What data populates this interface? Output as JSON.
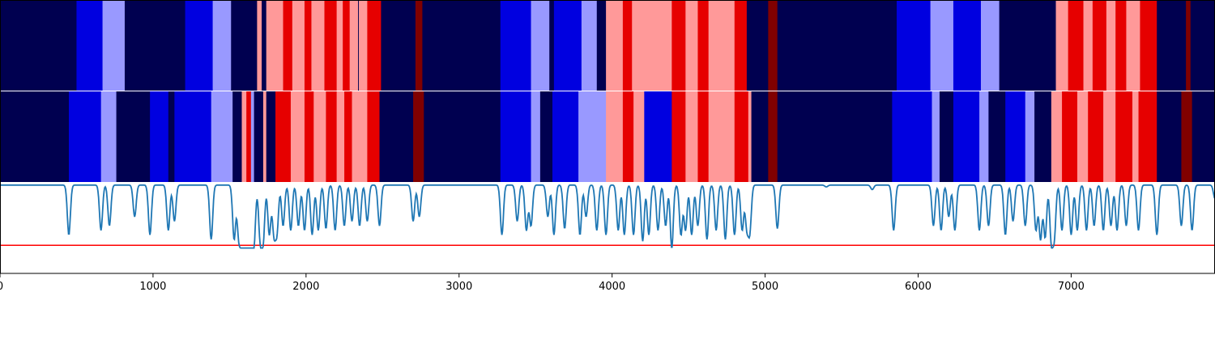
{
  "colors": {
    "navy": "#000050",
    "blue": "#0000e0",
    "light_blue": "#9999ff",
    "light_red": "#ff9999",
    "red": "#e60000",
    "dark_red": "#800000",
    "line": "#1f77b4",
    "threshold": "#ff0000"
  },
  "chart_data": {
    "type": "segmentation-strips-with-line",
    "x_range": [
      0,
      7940
    ],
    "x_ticks": [
      {
        "value": 0,
        "label": "0"
      },
      {
        "value": 1000,
        "label": "1000"
      },
      {
        "value": 2000,
        "label": "2000"
      },
      {
        "value": 3000,
        "label": "3000"
      },
      {
        "value": 4000,
        "label": "4000"
      },
      {
        "value": 5000,
        "label": "5000"
      },
      {
        "value": 6000,
        "label": "6000"
      },
      {
        "value": 7000,
        "label": "7000"
      }
    ],
    "strips": [
      {
        "segments": [
          {
            "start": 0,
            "end": 500,
            "cls": "navy"
          },
          {
            "start": 500,
            "end": 670,
            "cls": "blue"
          },
          {
            "start": 670,
            "end": 815,
            "cls": "light_blue"
          },
          {
            "start": 815,
            "end": 1210,
            "cls": "navy"
          },
          {
            "start": 1210,
            "end": 1390,
            "cls": "blue"
          },
          {
            "start": 1390,
            "end": 1510,
            "cls": "light_blue"
          },
          {
            "start": 1510,
            "end": 1680,
            "cls": "navy"
          },
          {
            "start": 1680,
            "end": 1710,
            "cls": "light_red"
          },
          {
            "start": 1710,
            "end": 1740,
            "cls": "navy"
          },
          {
            "start": 1740,
            "end": 1850,
            "cls": "light_red"
          },
          {
            "start": 1850,
            "end": 1910,
            "cls": "red"
          },
          {
            "start": 1910,
            "end": 1990,
            "cls": "light_red"
          },
          {
            "start": 1990,
            "end": 2035,
            "cls": "red"
          },
          {
            "start": 2035,
            "end": 2120,
            "cls": "light_red"
          },
          {
            "start": 2120,
            "end": 2200,
            "cls": "red"
          },
          {
            "start": 2200,
            "end": 2240,
            "cls": "light_red"
          },
          {
            "start": 2240,
            "end": 2285,
            "cls": "red"
          },
          {
            "start": 2285,
            "end": 2340,
            "cls": "light_red"
          },
          {
            "start": 2340,
            "end": 2345,
            "cls": "navy"
          },
          {
            "start": 2345,
            "end": 2400,
            "cls": "light_red"
          },
          {
            "start": 2400,
            "end": 2490,
            "cls": "red"
          },
          {
            "start": 2490,
            "end": 2715,
            "cls": "navy"
          },
          {
            "start": 2715,
            "end": 2760,
            "cls": "dark_red"
          },
          {
            "start": 2760,
            "end": 3270,
            "cls": "navy"
          },
          {
            "start": 3270,
            "end": 3470,
            "cls": "blue"
          },
          {
            "start": 3470,
            "end": 3590,
            "cls": "light_blue"
          },
          {
            "start": 3590,
            "end": 3620,
            "cls": "navy"
          },
          {
            "start": 3620,
            "end": 3800,
            "cls": "blue"
          },
          {
            "start": 3800,
            "end": 3900,
            "cls": "light_blue"
          },
          {
            "start": 3900,
            "end": 3960,
            "cls": "navy"
          },
          {
            "start": 3960,
            "end": 4070,
            "cls": "light_red"
          },
          {
            "start": 4070,
            "end": 4130,
            "cls": "red"
          },
          {
            "start": 4130,
            "end": 4390,
            "cls": "light_red"
          },
          {
            "start": 4390,
            "end": 4480,
            "cls": "red"
          },
          {
            "start": 4480,
            "end": 4560,
            "cls": "light_red"
          },
          {
            "start": 4560,
            "end": 4630,
            "cls": "red"
          },
          {
            "start": 4630,
            "end": 4800,
            "cls": "light_red"
          },
          {
            "start": 4800,
            "end": 4880,
            "cls": "red"
          },
          {
            "start": 4880,
            "end": 5020,
            "cls": "navy"
          },
          {
            "start": 5020,
            "end": 5080,
            "cls": "dark_red"
          },
          {
            "start": 5080,
            "end": 5860,
            "cls": "navy"
          },
          {
            "start": 5860,
            "end": 6080,
            "cls": "blue"
          },
          {
            "start": 6080,
            "end": 6230,
            "cls": "light_blue"
          },
          {
            "start": 6230,
            "end": 6410,
            "cls": "blue"
          },
          {
            "start": 6410,
            "end": 6530,
            "cls": "light_blue"
          },
          {
            "start": 6530,
            "end": 6900,
            "cls": "navy"
          },
          {
            "start": 6900,
            "end": 6980,
            "cls": "light_red"
          },
          {
            "start": 6980,
            "end": 7080,
            "cls": "red"
          },
          {
            "start": 7080,
            "end": 7140,
            "cls": "light_red"
          },
          {
            "start": 7140,
            "end": 7230,
            "cls": "red"
          },
          {
            "start": 7230,
            "end": 7290,
            "cls": "light_red"
          },
          {
            "start": 7290,
            "end": 7360,
            "cls": "red"
          },
          {
            "start": 7360,
            "end": 7450,
            "cls": "light_red"
          },
          {
            "start": 7450,
            "end": 7560,
            "cls": "red"
          },
          {
            "start": 7560,
            "end": 7750,
            "cls": "navy"
          },
          {
            "start": 7750,
            "end": 7780,
            "cls": "dark_red"
          },
          {
            "start": 7780,
            "end": 7940,
            "cls": "navy"
          }
        ]
      },
      {
        "segments": [
          {
            "start": 0,
            "end": 450,
            "cls": "navy"
          },
          {
            "start": 450,
            "end": 660,
            "cls": "blue"
          },
          {
            "start": 660,
            "end": 760,
            "cls": "light_blue"
          },
          {
            "start": 760,
            "end": 980,
            "cls": "navy"
          },
          {
            "start": 980,
            "end": 1100,
            "cls": "blue"
          },
          {
            "start": 1100,
            "end": 1140,
            "cls": "navy"
          },
          {
            "start": 1140,
            "end": 1380,
            "cls": "blue"
          },
          {
            "start": 1380,
            "end": 1520,
            "cls": "light_blue"
          },
          {
            "start": 1520,
            "end": 1580,
            "cls": "navy"
          },
          {
            "start": 1580,
            "end": 1610,
            "cls": "light_red"
          },
          {
            "start": 1610,
            "end": 1640,
            "cls": "red"
          },
          {
            "start": 1640,
            "end": 1660,
            "cls": "light_blue"
          },
          {
            "start": 1660,
            "end": 1720,
            "cls": "navy"
          },
          {
            "start": 1720,
            "end": 1740,
            "cls": "light_red"
          },
          {
            "start": 1740,
            "end": 1800,
            "cls": "navy"
          },
          {
            "start": 1800,
            "end": 1900,
            "cls": "red"
          },
          {
            "start": 1900,
            "end": 1990,
            "cls": "light_red"
          },
          {
            "start": 1990,
            "end": 2050,
            "cls": "red"
          },
          {
            "start": 2050,
            "end": 2130,
            "cls": "light_red"
          },
          {
            "start": 2130,
            "end": 2200,
            "cls": "red"
          },
          {
            "start": 2200,
            "end": 2250,
            "cls": "light_red"
          },
          {
            "start": 2250,
            "end": 2300,
            "cls": "red"
          },
          {
            "start": 2300,
            "end": 2400,
            "cls": "light_red"
          },
          {
            "start": 2400,
            "end": 2480,
            "cls": "red"
          },
          {
            "start": 2480,
            "end": 2700,
            "cls": "navy"
          },
          {
            "start": 2700,
            "end": 2770,
            "cls": "dark_red"
          },
          {
            "start": 2770,
            "end": 3270,
            "cls": "navy"
          },
          {
            "start": 3270,
            "end": 3470,
            "cls": "blue"
          },
          {
            "start": 3470,
            "end": 3530,
            "cls": "light_blue"
          },
          {
            "start": 3530,
            "end": 3610,
            "cls": "navy"
          },
          {
            "start": 3610,
            "end": 3780,
            "cls": "blue"
          },
          {
            "start": 3780,
            "end": 3960,
            "cls": "light_blue"
          },
          {
            "start": 3960,
            "end": 4070,
            "cls": "light_red"
          },
          {
            "start": 4070,
            "end": 4140,
            "cls": "red"
          },
          {
            "start": 4140,
            "end": 4210,
            "cls": "light_red"
          },
          {
            "start": 4210,
            "end": 4390,
            "cls": "blue"
          },
          {
            "start": 4390,
            "end": 4480,
            "cls": "red"
          },
          {
            "start": 4480,
            "end": 4560,
            "cls": "light_red"
          },
          {
            "start": 4560,
            "end": 4630,
            "cls": "red"
          },
          {
            "start": 4630,
            "end": 4800,
            "cls": "light_red"
          },
          {
            "start": 4800,
            "end": 4890,
            "cls": "red"
          },
          {
            "start": 4890,
            "end": 4910,
            "cls": "light_red"
          },
          {
            "start": 4910,
            "end": 5020,
            "cls": "navy"
          },
          {
            "start": 5020,
            "end": 5080,
            "cls": "dark_red"
          },
          {
            "start": 5080,
            "end": 5830,
            "cls": "navy"
          },
          {
            "start": 5830,
            "end": 6090,
            "cls": "blue"
          },
          {
            "start": 6090,
            "end": 6140,
            "cls": "light_blue"
          },
          {
            "start": 6140,
            "end": 6230,
            "cls": "navy"
          },
          {
            "start": 6230,
            "end": 6400,
            "cls": "blue"
          },
          {
            "start": 6400,
            "end": 6460,
            "cls": "light_blue"
          },
          {
            "start": 6460,
            "end": 6570,
            "cls": "navy"
          },
          {
            "start": 6570,
            "end": 6700,
            "cls": "blue"
          },
          {
            "start": 6700,
            "end": 6760,
            "cls": "light_blue"
          },
          {
            "start": 6760,
            "end": 6870,
            "cls": "navy"
          },
          {
            "start": 6870,
            "end": 6940,
            "cls": "light_red"
          },
          {
            "start": 6940,
            "end": 7040,
            "cls": "red"
          },
          {
            "start": 7040,
            "end": 7110,
            "cls": "light_red"
          },
          {
            "start": 7110,
            "end": 7210,
            "cls": "red"
          },
          {
            "start": 7210,
            "end": 7290,
            "cls": "light_red"
          },
          {
            "start": 7290,
            "end": 7400,
            "cls": "red"
          },
          {
            "start": 7400,
            "end": 7440,
            "cls": "light_red"
          },
          {
            "start": 7440,
            "end": 7560,
            "cls": "red"
          },
          {
            "start": 7560,
            "end": 7720,
            "cls": "navy"
          },
          {
            "start": 7720,
            "end": 7790,
            "cls": "dark_red"
          },
          {
            "start": 7790,
            "end": 7940,
            "cls": "navy"
          }
        ]
      }
    ],
    "line_panel": {
      "y_range": [
        0,
        1
      ],
      "threshold": 0.31,
      "dips": [
        {
          "x": 450,
          "d": 0.55
        },
        {
          "x": 660,
          "d": 0.5
        },
        {
          "x": 715,
          "d": 0.45
        },
        {
          "x": 880,
          "d": 0.35
        },
        {
          "x": 980,
          "d": 0.55
        },
        {
          "x": 1100,
          "d": 0.5
        },
        {
          "x": 1140,
          "d": 0.4
        },
        {
          "x": 1380,
          "d": 0.6
        },
        {
          "x": 1530,
          "d": 0.6
        },
        {
          "x": 1560,
          "d": 0.55
        },
        {
          "x": 1580,
          "d": 0.6
        },
        {
          "x": 1600,
          "d": 0.6
        },
        {
          "x": 1620,
          "d": 0.62
        },
        {
          "x": 1640,
          "d": 0.68
        },
        {
          "x": 1660,
          "d": 0.62
        },
        {
          "x": 1700,
          "d": 0.58
        },
        {
          "x": 1720,
          "d": 0.6
        },
        {
          "x": 1760,
          "d": 0.55
        },
        {
          "x": 1790,
          "d": 0.52
        },
        {
          "x": 1810,
          "d": 0.5
        },
        {
          "x": 1850,
          "d": 0.45
        },
        {
          "x": 1900,
          "d": 0.5
        },
        {
          "x": 1950,
          "d": 0.45
        },
        {
          "x": 1990,
          "d": 0.5
        },
        {
          "x": 2040,
          "d": 0.55
        },
        {
          "x": 2080,
          "d": 0.5
        },
        {
          "x": 2130,
          "d": 0.48
        },
        {
          "x": 2190,
          "d": 0.5
        },
        {
          "x": 2250,
          "d": 0.45
        },
        {
          "x": 2300,
          "d": 0.4
        },
        {
          "x": 2350,
          "d": 0.45
        },
        {
          "x": 2400,
          "d": 0.4
        },
        {
          "x": 2480,
          "d": 0.45
        },
        {
          "x": 2700,
          "d": 0.4
        },
        {
          "x": 2740,
          "d": 0.35
        },
        {
          "x": 3280,
          "d": 0.55
        },
        {
          "x": 3380,
          "d": 0.4
        },
        {
          "x": 3440,
          "d": 0.5
        },
        {
          "x": 3470,
          "d": 0.45
        },
        {
          "x": 3580,
          "d": 0.35
        },
        {
          "x": 3620,
          "d": 0.55
        },
        {
          "x": 3690,
          "d": 0.48
        },
        {
          "x": 3790,
          "d": 0.55
        },
        {
          "x": 3830,
          "d": 0.35
        },
        {
          "x": 3900,
          "d": 0.5
        },
        {
          "x": 3960,
          "d": 0.55
        },
        {
          "x": 4040,
          "d": 0.5
        },
        {
          "x": 4080,
          "d": 0.55
        },
        {
          "x": 4140,
          "d": 0.55
        },
        {
          "x": 4200,
          "d": 0.62
        },
        {
          "x": 4240,
          "d": 0.55
        },
        {
          "x": 4300,
          "d": 0.5
        },
        {
          "x": 4350,
          "d": 0.45
        },
        {
          "x": 4390,
          "d": 0.7
        },
        {
          "x": 4450,
          "d": 0.55
        },
        {
          "x": 4480,
          "d": 0.5
        },
        {
          "x": 4520,
          "d": 0.55
        },
        {
          "x": 4560,
          "d": 0.45
        },
        {
          "x": 4620,
          "d": 0.6
        },
        {
          "x": 4680,
          "d": 0.5
        },
        {
          "x": 4740,
          "d": 0.6
        },
        {
          "x": 4800,
          "d": 0.55
        },
        {
          "x": 4850,
          "d": 0.5
        },
        {
          "x": 4880,
          "d": 0.45
        },
        {
          "x": 4900,
          "d": 0.5
        },
        {
          "x": 5080,
          "d": 0.48
        },
        {
          "x": 5400,
          "d": 0.02
        },
        {
          "x": 5700,
          "d": 0.05
        },
        {
          "x": 5840,
          "d": 0.5
        },
        {
          "x": 6100,
          "d": 0.45
        },
        {
          "x": 6150,
          "d": 0.5
        },
        {
          "x": 6200,
          "d": 0.35
        },
        {
          "x": 6240,
          "d": 0.5
        },
        {
          "x": 6400,
          "d": 0.5
        },
        {
          "x": 6460,
          "d": 0.45
        },
        {
          "x": 6570,
          "d": 0.55
        },
        {
          "x": 6620,
          "d": 0.4
        },
        {
          "x": 6700,
          "d": 0.45
        },
        {
          "x": 6770,
          "d": 0.5
        },
        {
          "x": 6800,
          "d": 0.6
        },
        {
          "x": 6830,
          "d": 0.58
        },
        {
          "x": 6870,
          "d": 0.6
        },
        {
          "x": 6890,
          "d": 0.55
        },
        {
          "x": 6940,
          "d": 0.5
        },
        {
          "x": 7000,
          "d": 0.55
        },
        {
          "x": 7040,
          "d": 0.5
        },
        {
          "x": 7100,
          "d": 0.5
        },
        {
          "x": 7150,
          "d": 0.45
        },
        {
          "x": 7210,
          "d": 0.5
        },
        {
          "x": 7260,
          "d": 0.45
        },
        {
          "x": 7300,
          "d": 0.5
        },
        {
          "x": 7360,
          "d": 0.45
        },
        {
          "x": 7440,
          "d": 0.5
        },
        {
          "x": 7560,
          "d": 0.55
        },
        {
          "x": 7720,
          "d": 0.45
        },
        {
          "x": 7790,
          "d": 0.5
        },
        {
          "x": 7940,
          "d": 0.15
        }
      ]
    }
  }
}
